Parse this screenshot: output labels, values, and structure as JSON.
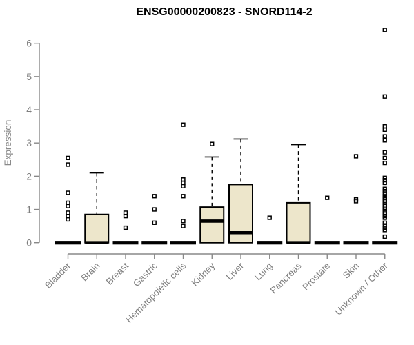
{
  "chart_data": {
    "type": "box",
    "title": "ENSG00000200823 - SNORD114-2",
    "ylabel": "Expression",
    "xlabel": "",
    "ylim": [
      0,
      6.5
    ],
    "yticks": [
      0,
      1,
      2,
      3,
      4,
      5,
      6
    ],
    "grid": false,
    "legend": "none",
    "x_label_rotation_deg": 45,
    "categories": [
      "Bladder",
      "Brain",
      "Breast",
      "Gastric",
      "Hematopoietic cells",
      "Kidney",
      "Liver",
      "Lung",
      "Pancreas",
      "Prostate",
      "Skin",
      "Unknown / Other"
    ],
    "series": [
      {
        "category": "Bladder",
        "q1": 0,
        "median": 0,
        "q3": 0,
        "whisker_low": 0,
        "whisker_high": 0,
        "outliers": [
          2.55,
          2.35,
          1.5,
          1.2,
          1.1,
          0.9,
          0.8,
          0.7
        ]
      },
      {
        "category": "Brain",
        "q1": 0,
        "median": 0,
        "q3": 0.85,
        "whisker_low": 0,
        "whisker_high": 2.1,
        "outliers": []
      },
      {
        "category": "Breast",
        "q1": 0,
        "median": 0,
        "q3": 0,
        "whisker_low": 0,
        "whisker_high": 0,
        "outliers": [
          0.9,
          0.8,
          0.45
        ]
      },
      {
        "category": "Gastric",
        "q1": 0,
        "median": 0,
        "q3": 0,
        "whisker_low": 0,
        "whisker_high": 0,
        "outliers": [
          1.4,
          1.0,
          0.6
        ]
      },
      {
        "category": "Hematopoietic cells",
        "q1": 0,
        "median": 0,
        "q3": 0,
        "whisker_low": 0,
        "whisker_high": 0,
        "outliers": [
          3.55,
          1.9,
          1.8,
          1.7,
          1.4,
          0.65,
          0.5
        ]
      },
      {
        "category": "Kidney",
        "q1": 0,
        "median": 0.65,
        "q3": 1.07,
        "whisker_low": 0,
        "whisker_high": 2.58,
        "outliers": [
          2.97
        ]
      },
      {
        "category": "Liver",
        "q1": 0,
        "median": 0.3,
        "q3": 1.75,
        "whisker_low": 0,
        "whisker_high": 3.12,
        "outliers": []
      },
      {
        "category": "Lung",
        "q1": 0,
        "median": 0,
        "q3": 0,
        "whisker_low": 0,
        "whisker_high": 0,
        "outliers": [
          0.75
        ]
      },
      {
        "category": "Pancreas",
        "q1": 0,
        "median": 0,
        "q3": 1.2,
        "whisker_low": 0,
        "whisker_high": 2.95,
        "outliers": []
      },
      {
        "category": "Prostate",
        "q1": 0,
        "median": 0,
        "q3": 0,
        "whisker_low": 0,
        "whisker_high": 0,
        "outliers": [
          1.35
        ]
      },
      {
        "category": "Skin",
        "q1": 0,
        "median": 0,
        "q3": 0,
        "whisker_low": 0,
        "whisker_high": 0,
        "outliers": [
          2.6,
          1.3,
          1.25
        ]
      },
      {
        "category": "Unknown / Other",
        "q1": 0,
        "median": 0,
        "q3": 0,
        "whisker_low": 0,
        "whisker_high": 0,
        "outliers": [
          6.4,
          4.4,
          3.5,
          3.4,
          3.2,
          3.08,
          2.72,
          2.55,
          2.4,
          1.95,
          1.88,
          1.8,
          1.62,
          1.55,
          1.48,
          1.4,
          1.35,
          1.3,
          1.25,
          1.2,
          1.15,
          1.1,
          1.05,
          1.0,
          0.95,
          0.9,
          0.85,
          0.8,
          0.75,
          0.6,
          0.52,
          0.45,
          0.38,
          0.18
        ]
      }
    ],
    "colors": {
      "box_fill": "#EDE6CB",
      "box_border": "#000000",
      "median": "#000000",
      "whisker": "#000000",
      "outlier": "#000000",
      "axis": "#888888",
      "tick_label": "#7f7f7f",
      "title": "#000000",
      "background": "#ffffff"
    }
  }
}
